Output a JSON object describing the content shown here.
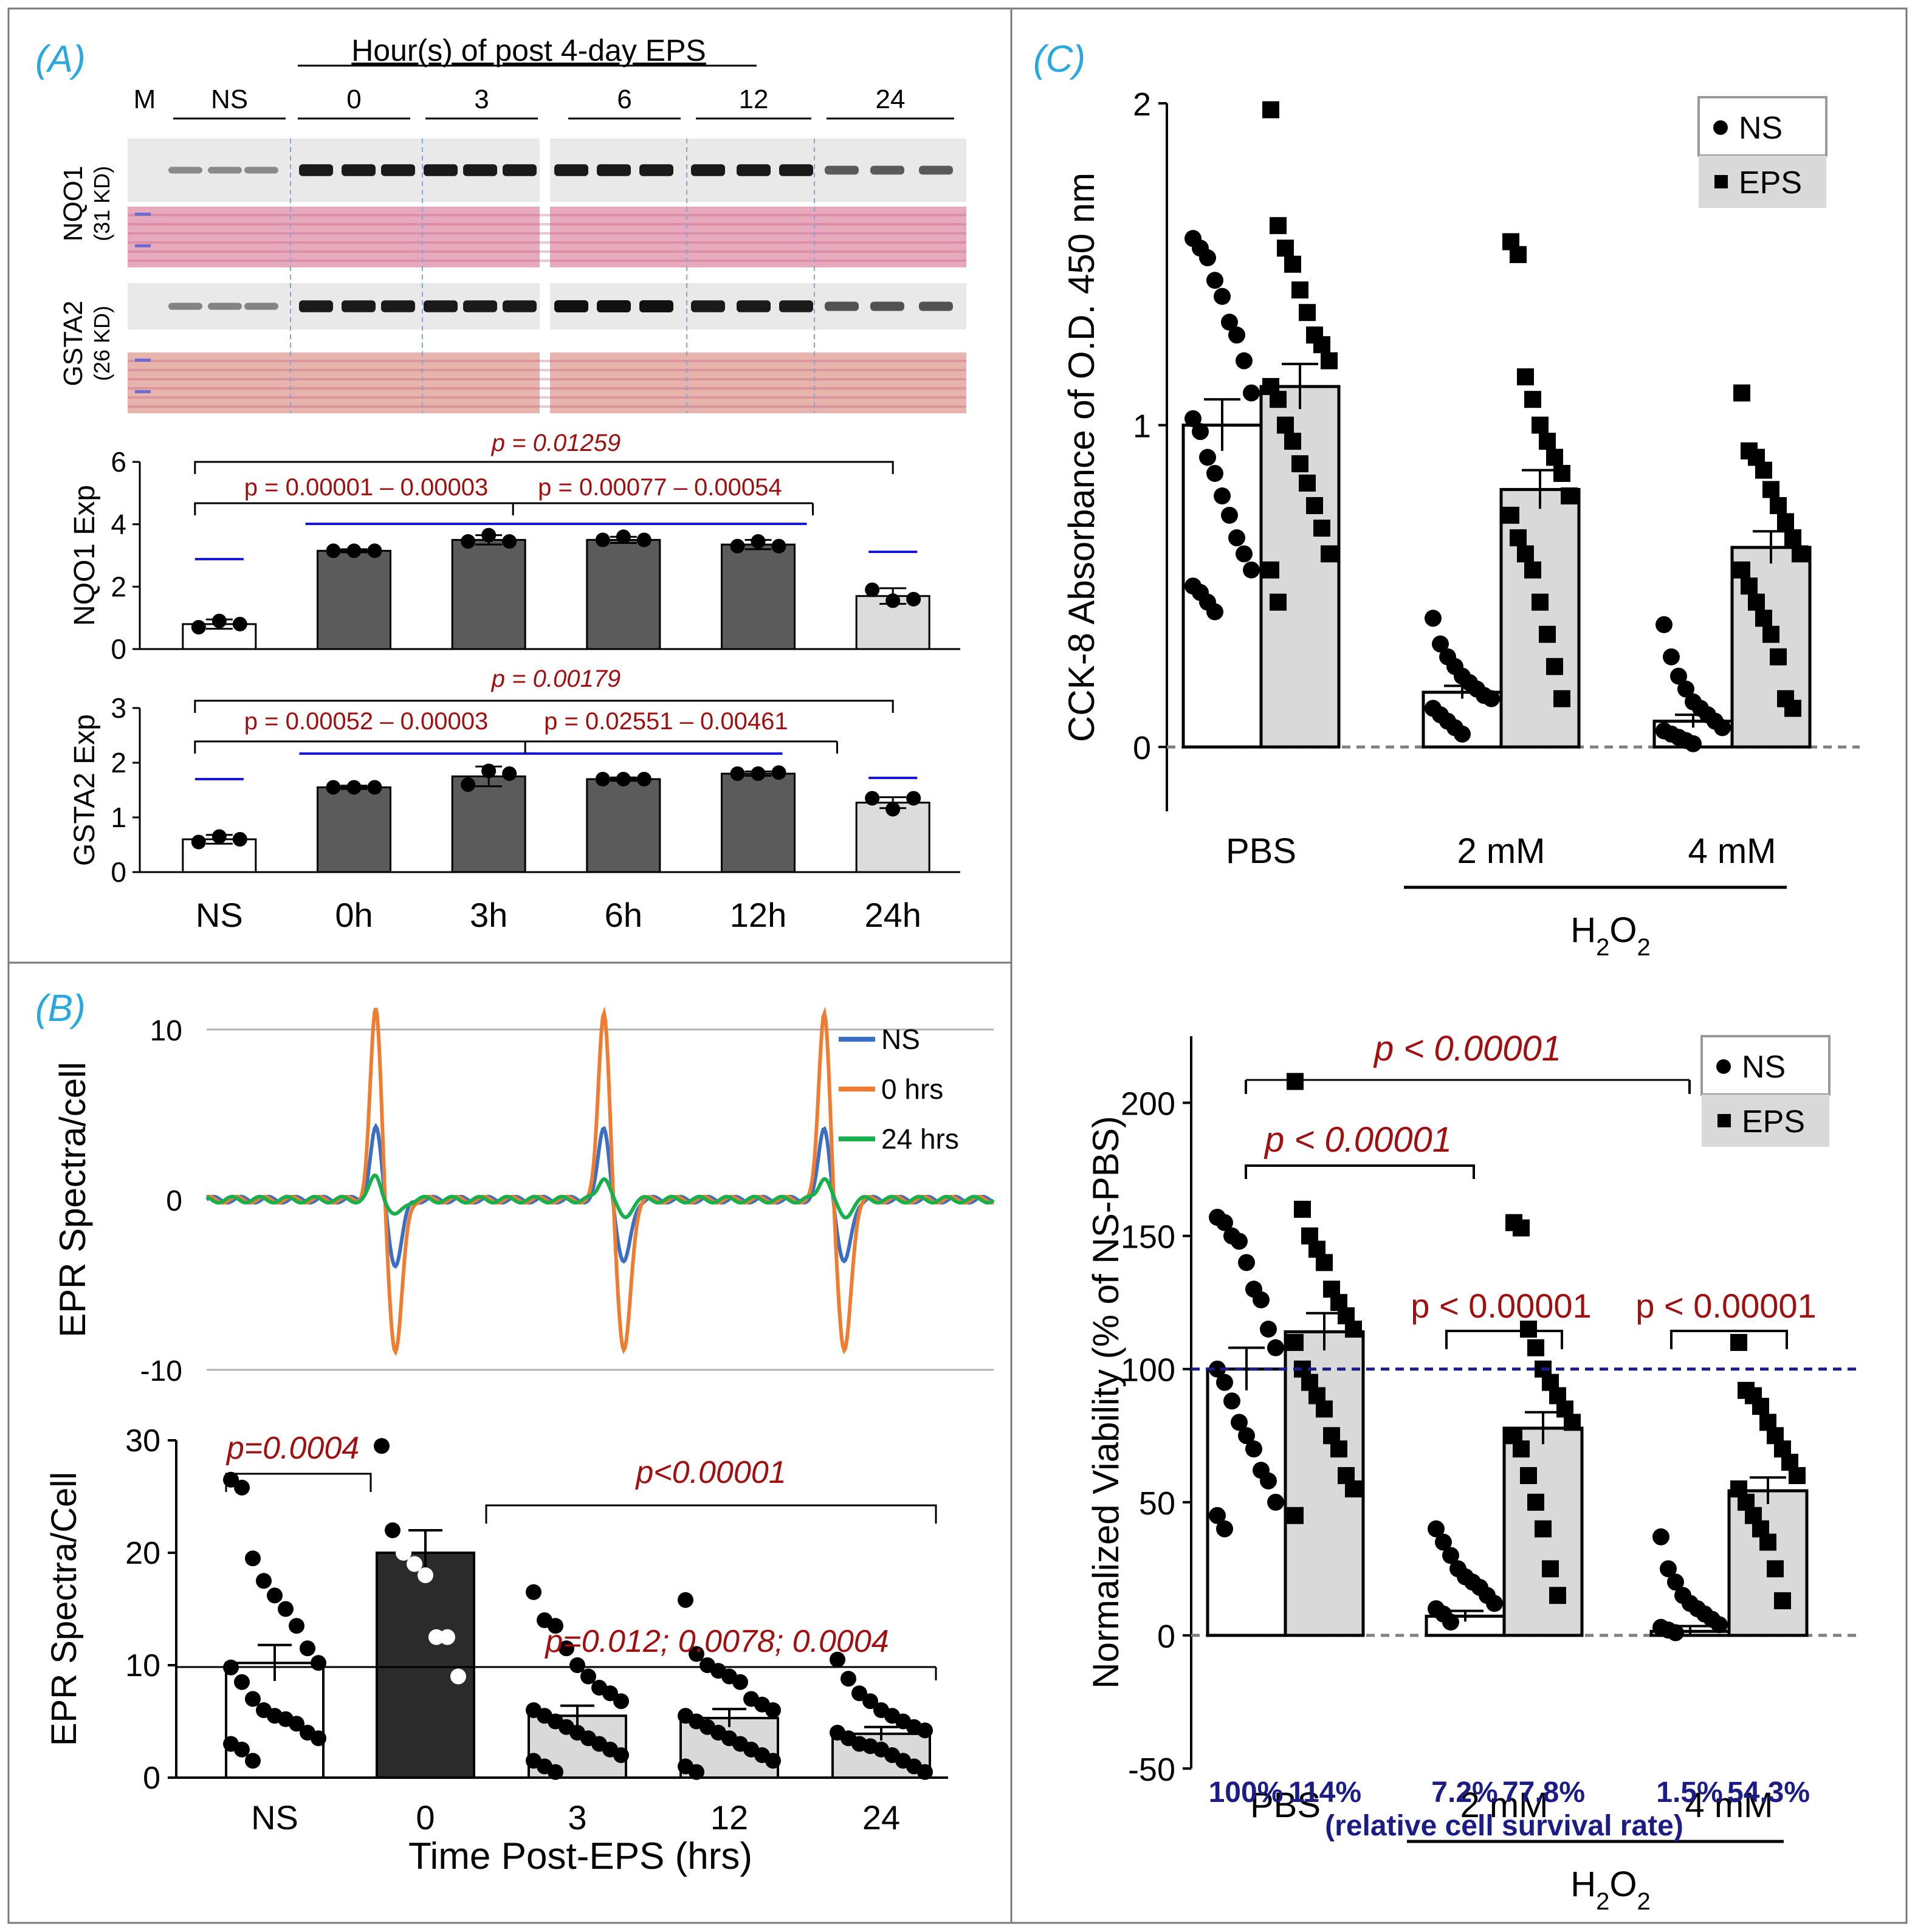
{
  "panel_labels": {
    "a": "(A)",
    "b": "(B)",
    "c": "(C)"
  },
  "blot": {
    "header": "Hour(s) of post 4-day EPS",
    "marker": "M",
    "groups": [
      "NS",
      "0",
      "3",
      "6",
      "12",
      "24"
    ],
    "rows": [
      {
        "protein": "NQO1",
        "size": "(31 KD)"
      },
      {
        "protein": "GSTA2",
        "size": "(26 KD)"
      }
    ],
    "colors": {
      "blot_bg": "#e9e9e9",
      "band": "#111111",
      "ponceau": "#e6a9bd",
      "gsta_ponceau": "#e7b3ad"
    }
  },
  "chart_data": [
    {
      "id": "nqo1",
      "type": "bar",
      "ylabel": "NQO1 Exp",
      "ylim": [
        0,
        6
      ],
      "yticks": [
        "0",
        "2",
        "4",
        "6"
      ],
      "categories": [
        "NS",
        "0h",
        "3h",
        "6h",
        "12h",
        "24h"
      ],
      "values": [
        0.8,
        3.15,
        3.5,
        3.5,
        3.35,
        1.7
      ],
      "errors": [
        0.15,
        0.05,
        0.15,
        0.1,
        0.15,
        0.25
      ],
      "points": [
        [
          0.7,
          0.9,
          0.8
        ],
        [
          3.15,
          3.15,
          3.15
        ],
        [
          3.45,
          3.65,
          3.45
        ],
        [
          3.5,
          3.6,
          3.5
        ],
        [
          3.3,
          3.45,
          3.3
        ],
        [
          1.9,
          1.55,
          1.6
        ]
      ],
      "bar_colors": [
        "#ffffff",
        "#5b5b5b",
        "#5b5b5b",
        "#5b5b5b",
        "#5b5b5b",
        "#dcdcdc"
      ],
      "pvalues": [
        "p = 0.01259",
        "p = 0.00001 – 0.00003",
        "p = 0.00077 – 0.00054"
      ]
    },
    {
      "id": "gsta2",
      "type": "bar",
      "ylabel": "GSTA2 Exp",
      "ylim": [
        0,
        3
      ],
      "yticks": [
        "0",
        "1",
        "2",
        "3"
      ],
      "categories": [
        "NS",
        "0h",
        "3h",
        "6h",
        "12h",
        "24h"
      ],
      "values": [
        0.6,
        1.55,
        1.75,
        1.7,
        1.8,
        1.27
      ],
      "errors": [
        0.08,
        0.03,
        0.18,
        0.03,
        0.04,
        0.1
      ],
      "points": [
        [
          0.55,
          0.65,
          0.6
        ],
        [
          1.55,
          1.55,
          1.55
        ],
        [
          1.6,
          1.85,
          1.8
        ],
        [
          1.7,
          1.7,
          1.7
        ],
        [
          1.8,
          1.8,
          1.82
        ],
        [
          1.35,
          1.15,
          1.35
        ]
      ],
      "bar_colors": [
        "#ffffff",
        "#5b5b5b",
        "#5b5b5b",
        "#5b5b5b",
        "#5b5b5b",
        "#dcdcdc"
      ],
      "pvalues": [
        "p = 0.00179",
        "p = 0.00052 – 0.00003",
        "p = 0.02551 – 0.00461"
      ]
    },
    {
      "id": "epr_spectra",
      "type": "line",
      "ylabel": "EPR Spectra/cell",
      "ylim": [
        -10,
        10
      ],
      "yticks": [
        "10",
        "0",
        "-10"
      ],
      "series": [
        {
          "name": "NS",
          "color": "#3a6fc4",
          "peak": 4.2,
          "trough": -3.8
        },
        {
          "name": "0 hrs",
          "color": "#ee7d31",
          "peak": 11.2,
          "trough": -9.0
        },
        {
          "name": "24 hrs",
          "color": "#18b04a",
          "peak": 1.4,
          "trough": -1.0
        }
      ],
      "peak_positions_x": [
        0.22,
        0.51,
        0.79
      ]
    },
    {
      "id": "epr_bar",
      "type": "bar",
      "ylabel": "EPR Spectra/Cell",
      "xlabel": "Time Post-EPS (hrs)",
      "ylim": [
        0,
        30
      ],
      "yticks": [
        "0",
        "10",
        "20",
        "30"
      ],
      "categories": [
        "NS",
        "0",
        "3",
        "12",
        "24"
      ],
      "values": [
        10.2,
        20.0,
        5.5,
        5.3,
        3.9
      ],
      "errors": [
        1.6,
        2.0,
        0.9,
        0.8,
        0.6
      ],
      "bar_colors": [
        "#ffffff",
        "#2b2b2b",
        "#d9d9d9",
        "#d9d9d9",
        "#d9d9d9"
      ],
      "points": [
        [
          26.5,
          25.8,
          19.5,
          17.5,
          16.2,
          15.0,
          13.5,
          11.5,
          10.2,
          9.8,
          8.5,
          7.0,
          6.0,
          5.5,
          5.2,
          4.8,
          4.0,
          3.5,
          3.0,
          2.5,
          1.5
        ],
        [
          29.5,
          22.0,
          20.0,
          19.0,
          18.0,
          12.5,
          12.5,
          9.0
        ],
        [
          16.5,
          14.0,
          13.5,
          11.5,
          10.0,
          9.0,
          8.0,
          7.5,
          6.8,
          6.0,
          5.5,
          5.0,
          4.5,
          4.0,
          3.5,
          3.0,
          2.5,
          2.0,
          1.5,
          1.0,
          0.5
        ],
        [
          15.8,
          11.0,
          10.0,
          9.5,
          9.0,
          8.5,
          7.0,
          6.5,
          6.0,
          5.5,
          5.0,
          4.5,
          4.0,
          3.5,
          3.0,
          2.5,
          2.0,
          1.5,
          1.0,
          0.5
        ],
        [
          10.5,
          8.8,
          7.5,
          6.8,
          6.0,
          5.5,
          5.0,
          4.5,
          4.2,
          4.0,
          3.5,
          3.0,
          2.8,
          2.5,
          2.0,
          1.5,
          1.0,
          0.5
        ]
      ],
      "pvalues": [
        "p=0.0004",
        "p<0.00001",
        "p=0.012; 0.0078; 0.0004"
      ]
    },
    {
      "id": "cck8",
      "type": "bar",
      "ylabel": "CCK-8 Absorbance of O.D. 450 nm",
      "ylim": [
        -0.2,
        2.0
      ],
      "yticks": [
        "0",
        "1",
        "2"
      ],
      "groups": [
        "PBS",
        "2 mM",
        "4 mM"
      ],
      "group_label": "H2O2",
      "legend": [
        "NS",
        "EPS"
      ],
      "values": [
        [
          1.0,
          1.12
        ],
        [
          0.17,
          0.8
        ],
        [
          0.08,
          0.62
        ]
      ],
      "errors": [
        [
          0.08,
          0.07
        ],
        [
          0.02,
          0.06
        ],
        [
          0.02,
          0.05
        ]
      ],
      "points": [
        [
          [
            1.58,
            1.55,
            1.52,
            1.45,
            1.4,
            1.32,
            1.28,
            1.2,
            1.1,
            1.02,
            0.98,
            0.9,
            0.85,
            0.78,
            0.72,
            0.65,
            0.6,
            0.55,
            0.5,
            0.48,
            0.45,
            0.42
          ],
          [
            1.98,
            1.62,
            1.55,
            1.5,
            1.42,
            1.35,
            1.28,
            1.25,
            1.2,
            1.12,
            1.08,
            1.0,
            0.95,
            0.88,
            0.82,
            0.75,
            0.68,
            0.6,
            0.55,
            0.45
          ]
        ],
        [
          [
            0.4,
            0.32,
            0.28,
            0.25,
            0.22,
            0.2,
            0.18,
            0.16,
            0.15,
            0.12,
            0.1,
            0.08,
            0.06,
            0.04
          ],
          [
            1.57,
            1.53,
            1.15,
            1.08,
            1.0,
            0.95,
            0.9,
            0.85,
            0.78,
            0.72,
            0.65,
            0.6,
            0.55,
            0.45,
            0.35,
            0.25,
            0.15
          ]
        ],
        [
          [
            0.38,
            0.28,
            0.22,
            0.18,
            0.14,
            0.12,
            0.1,
            0.08,
            0.06,
            0.05,
            0.04,
            0.03,
            0.02,
            0.01
          ],
          [
            1.1,
            0.92,
            0.9,
            0.86,
            0.8,
            0.75,
            0.7,
            0.65,
            0.6,
            0.55,
            0.5,
            0.45,
            0.4,
            0.35,
            0.28,
            0.15,
            0.12
          ]
        ]
      ]
    },
    {
      "id": "viability",
      "type": "bar",
      "ylabel": "Normalized Viability (% of NS-PBS)",
      "ylim": [
        -50,
        225
      ],
      "yticks": [
        "-50",
        "0",
        "50",
        "100",
        "150",
        "200"
      ],
      "groups": [
        "PBS",
        "2 mM",
        "4 mM"
      ],
      "group_label": "H2O2",
      "legend": [
        "NS",
        "EPS"
      ],
      "values": [
        [
          100,
          114
        ],
        [
          7.2,
          77.8
        ],
        [
          1.5,
          54.3
        ]
      ],
      "errors": [
        [
          8,
          7
        ],
        [
          2,
          6
        ],
        [
          2,
          5
        ]
      ],
      "points": [
        [
          [
            157,
            155,
            150,
            148,
            140,
            130,
            126,
            115,
            108,
            100,
            95,
            88,
            80,
            75,
            70,
            62,
            58,
            50,
            45,
            40
          ],
          [
            208,
            160,
            150,
            145,
            140,
            130,
            125,
            120,
            115,
            110,
            100,
            95,
            90,
            85,
            75,
            70,
            60,
            55,
            45
          ]
        ],
        [
          [
            40,
            35,
            30,
            25,
            22,
            20,
            18,
            15,
            12,
            10,
            8,
            5
          ],
          [
            155,
            153,
            115,
            108,
            100,
            95,
            90,
            85,
            80,
            75,
            70,
            60,
            50,
            40,
            25,
            15
          ]
        ],
        [
          [
            37,
            25,
            20,
            15,
            12,
            10,
            8,
            6,
            4,
            3,
            2,
            1
          ],
          [
            110,
            92,
            90,
            86,
            80,
            75,
            70,
            65,
            60,
            55,
            50,
            45,
            40,
            35,
            25,
            13
          ]
        ]
      ],
      "survival_labels": [
        "100%",
        "114%",
        "7.2%",
        "77.8%",
        "1.5%",
        "54.3%"
      ],
      "survival_caption": "(relative cell survival rate)",
      "pvalues": [
        "p < 0.00001",
        "p < 0.00001",
        "p < 0.00001",
        "p < 0.00001"
      ]
    }
  ]
}
